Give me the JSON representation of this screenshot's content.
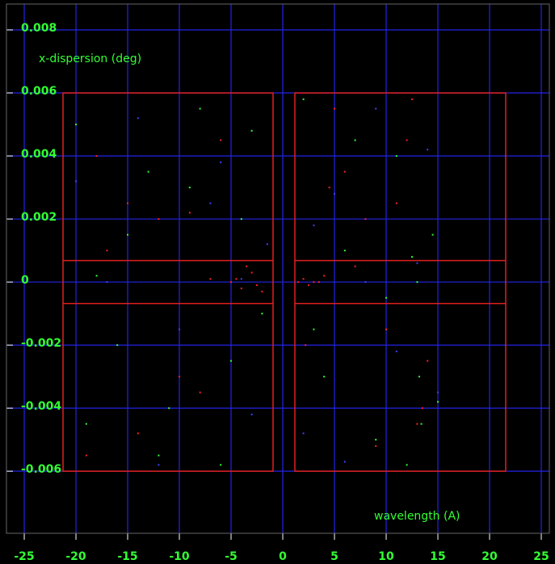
{
  "chart_data": {
    "type": "scatter",
    "y_label": "x-dispersion (deg)",
    "x_label": "wavelength (A)",
    "xlim": [
      -26.72,
      25.78
    ],
    "ylim": [
      -0.00797,
      0.00882
    ],
    "xticks": [
      -25,
      -20,
      -15,
      -10,
      -5,
      0,
      5,
      10,
      15,
      20,
      25
    ],
    "yticks": [
      -0.006,
      -0.004,
      -0.002,
      0,
      0.002,
      0.004,
      0.006,
      0.008
    ],
    "grid": true,
    "grid_color": "#2323e6",
    "regions": [
      {
        "x": [
          -21.25,
          -0.94
        ],
        "y": [
          -0.006,
          0.006
        ],
        "color": "#e02020"
      },
      {
        "x": [
          1.17,
          21.56
        ],
        "y": [
          -0.006,
          0.006
        ],
        "color": "#e02020"
      }
    ],
    "region_lines": [
      {
        "x": [
          -21.25,
          -0.94
        ],
        "y": 0.00068,
        "color": "#e02020"
      },
      {
        "x": [
          -21.25,
          -0.94
        ],
        "y": -0.00068,
        "color": "#e02020"
      },
      {
        "x": [
          1.17,
          21.56
        ],
        "y": 0.00068,
        "color": "#e02020"
      },
      {
        "x": [
          1.17,
          21.56
        ],
        "y": -0.00068,
        "color": "#e02020"
      }
    ],
    "series": [
      {
        "color": "#ff2020",
        "x": [
          -18,
          -15,
          -12,
          -9,
          -7,
          -5,
          -4,
          -3,
          -2.5,
          -4.5,
          -6,
          -10,
          -14,
          -17,
          -19,
          -8,
          -3.5,
          -2,
          1.5,
          2,
          2.5,
          3,
          4,
          5,
          6,
          8,
          10,
          12,
          13,
          14,
          3.5,
          7,
          9,
          11,
          13.5,
          12.5,
          2.2,
          4.5
        ],
        "values": [
          0.004,
          0.0025,
          0.002,
          0.0022,
          0.0001,
          0.0,
          -0.0002,
          0.0003,
          -0.0001,
          0.0001,
          0.0045,
          -0.003,
          -0.0048,
          0.001,
          -0.0055,
          -0.0035,
          0.0005,
          -0.0003,
          0.0,
          0.0001,
          -0.0001,
          0.0,
          0.0002,
          0.0055,
          0.0035,
          0.002,
          -0.0015,
          0.0045,
          -0.0045,
          -0.0025,
          0.0,
          0.0005,
          -0.0052,
          0.0025,
          -0.004,
          0.0058,
          -0.002,
          0.003
        ]
      },
      {
        "color": "#33ff33",
        "x": [
          -20,
          -16,
          -13,
          -11,
          -8,
          -6,
          -4,
          -2,
          -19,
          -15,
          -12,
          -9,
          -5,
          -3,
          -18,
          2,
          4,
          6,
          9,
          11,
          12.5,
          13.2,
          13.4,
          14.5,
          3,
          7,
          10,
          12,
          15,
          13
        ],
        "values": [
          0.005,
          -0.002,
          0.0035,
          -0.004,
          0.0055,
          -0.0058,
          0.002,
          -0.001,
          -0.0045,
          0.0015,
          -0.0055,
          0.003,
          -0.0025,
          0.0048,
          0.0002,
          0.0058,
          -0.003,
          0.001,
          -0.005,
          0.004,
          0.0008,
          -0.003,
          -0.0045,
          0.0015,
          -0.0015,
          0.0045,
          -0.0005,
          -0.0058,
          -0.0038,
          0.0
        ]
      },
      {
        "color": "#4040ff",
        "x": [
          -17,
          -14,
          -10,
          -7,
          -3,
          -1.5,
          -20,
          -12,
          -6,
          -4,
          2,
          5,
          8,
          11,
          14,
          15,
          3,
          9,
          13,
          6
        ],
        "values": [
          0.0,
          0.0052,
          -0.0015,
          0.0025,
          -0.0042,
          0.0012,
          0.0032,
          -0.0058,
          0.0038,
          0.0001,
          -0.0048,
          0.0028,
          0.0,
          -0.0022,
          0.0042,
          -0.0035,
          0.0018,
          0.0055,
          0.0006,
          -0.0057
        ]
      }
    ]
  }
}
